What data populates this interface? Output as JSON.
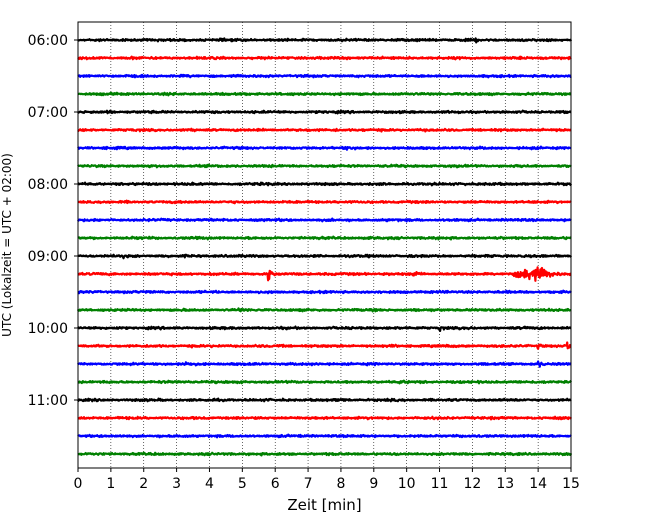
{
  "chart_data": {
    "type": "line",
    "title": "",
    "xlabel": "Zeit  [min]",
    "ylabel": "UTC (Lokalzeit = UTC + 02:00)",
    "xlim": [
      0,
      15
    ],
    "x_ticks": [
      "0",
      "1",
      "2",
      "3",
      "4",
      "5",
      "6",
      "7",
      "8",
      "9",
      "10",
      "11",
      "12",
      "13",
      "14",
      "15"
    ],
    "hour_labels": [
      "06:00",
      "07:00",
      "08:00",
      "09:00",
      "10:00",
      "11:00"
    ],
    "grid": "vertical dotted at each minute",
    "legend": "none",
    "trace_color_cycle": [
      "#000000",
      "#ff0000",
      "#0000ff",
      "#008000"
    ],
    "traces": [
      {
        "start": "06:00",
        "events": [
          {
            "t": 4.4,
            "amp": 0.12
          },
          {
            "t": 12.1,
            "amp": 0.14
          }
        ]
      },
      {
        "start": "06:15",
        "events": [
          {
            "t": 1.6,
            "amp": 0.12
          },
          {
            "t": 14.1,
            "amp": 0.12
          }
        ]
      },
      {
        "start": "06:30",
        "events": []
      },
      {
        "start": "06:45",
        "events": [
          {
            "t": 4.9,
            "amp": 0.16
          },
          {
            "t": 11.0,
            "amp": 0.12
          }
        ]
      },
      {
        "start": "07:00",
        "events": [
          {
            "t": 0.9,
            "amp": 0.12
          },
          {
            "t": 5.3,
            "amp": 0.12
          }
        ]
      },
      {
        "start": "07:15",
        "events": [
          {
            "t": 7.8,
            "amp": 0.12
          }
        ]
      },
      {
        "start": "07:30",
        "events": [
          {
            "t": 8.2,
            "amp": 0.16
          }
        ]
      },
      {
        "start": "07:45",
        "events": [
          {
            "t": 13.5,
            "amp": 0.14
          }
        ]
      },
      {
        "start": "08:00",
        "events": [
          {
            "t": 5.8,
            "amp": 0.12
          },
          {
            "t": 11.8,
            "amp": 0.12
          }
        ]
      },
      {
        "start": "08:15",
        "events": []
      },
      {
        "start": "08:30",
        "events": []
      },
      {
        "start": "08:45",
        "events": []
      },
      {
        "start": "09:00",
        "events": [
          {
            "t": 1.4,
            "amp": 0.14
          }
        ]
      },
      {
        "start": "09:15",
        "events": [
          {
            "t": 5.8,
            "amp": 1.0
          },
          {
            "t": 10.2,
            "amp": 0.85
          },
          {
            "t": 13.4,
            "amp": 0.7,
            "duration": 1.0
          }
        ]
      },
      {
        "start": "09:30",
        "events": []
      },
      {
        "start": "09:45",
        "events": [
          {
            "t": 4.9,
            "amp": 0.12
          }
        ]
      },
      {
        "start": "10:00",
        "events": [
          {
            "t": 11.0,
            "amp": 0.4
          }
        ]
      },
      {
        "start": "10:15",
        "events": [
          {
            "t": 14.0,
            "amp": 0.3
          },
          {
            "t": 14.9,
            "amp": 0.7
          }
        ]
      },
      {
        "start": "10:30",
        "events": [
          {
            "t": 3.3,
            "amp": 0.5
          },
          {
            "t": 14.0,
            "amp": 0.45
          }
        ]
      },
      {
        "start": "10:45",
        "events": [
          {
            "t": 3.2,
            "amp": 0.14
          },
          {
            "t": 9.8,
            "amp": 0.12
          }
        ]
      },
      {
        "start": "11:00",
        "events": [
          {
            "t": 8.0,
            "amp": 0.12
          }
        ]
      },
      {
        "start": "11:15",
        "events": []
      },
      {
        "start": "11:30",
        "events": []
      },
      {
        "start": "11:45",
        "events": [
          {
            "t": 6.5,
            "amp": 0.14
          }
        ]
      }
    ]
  }
}
